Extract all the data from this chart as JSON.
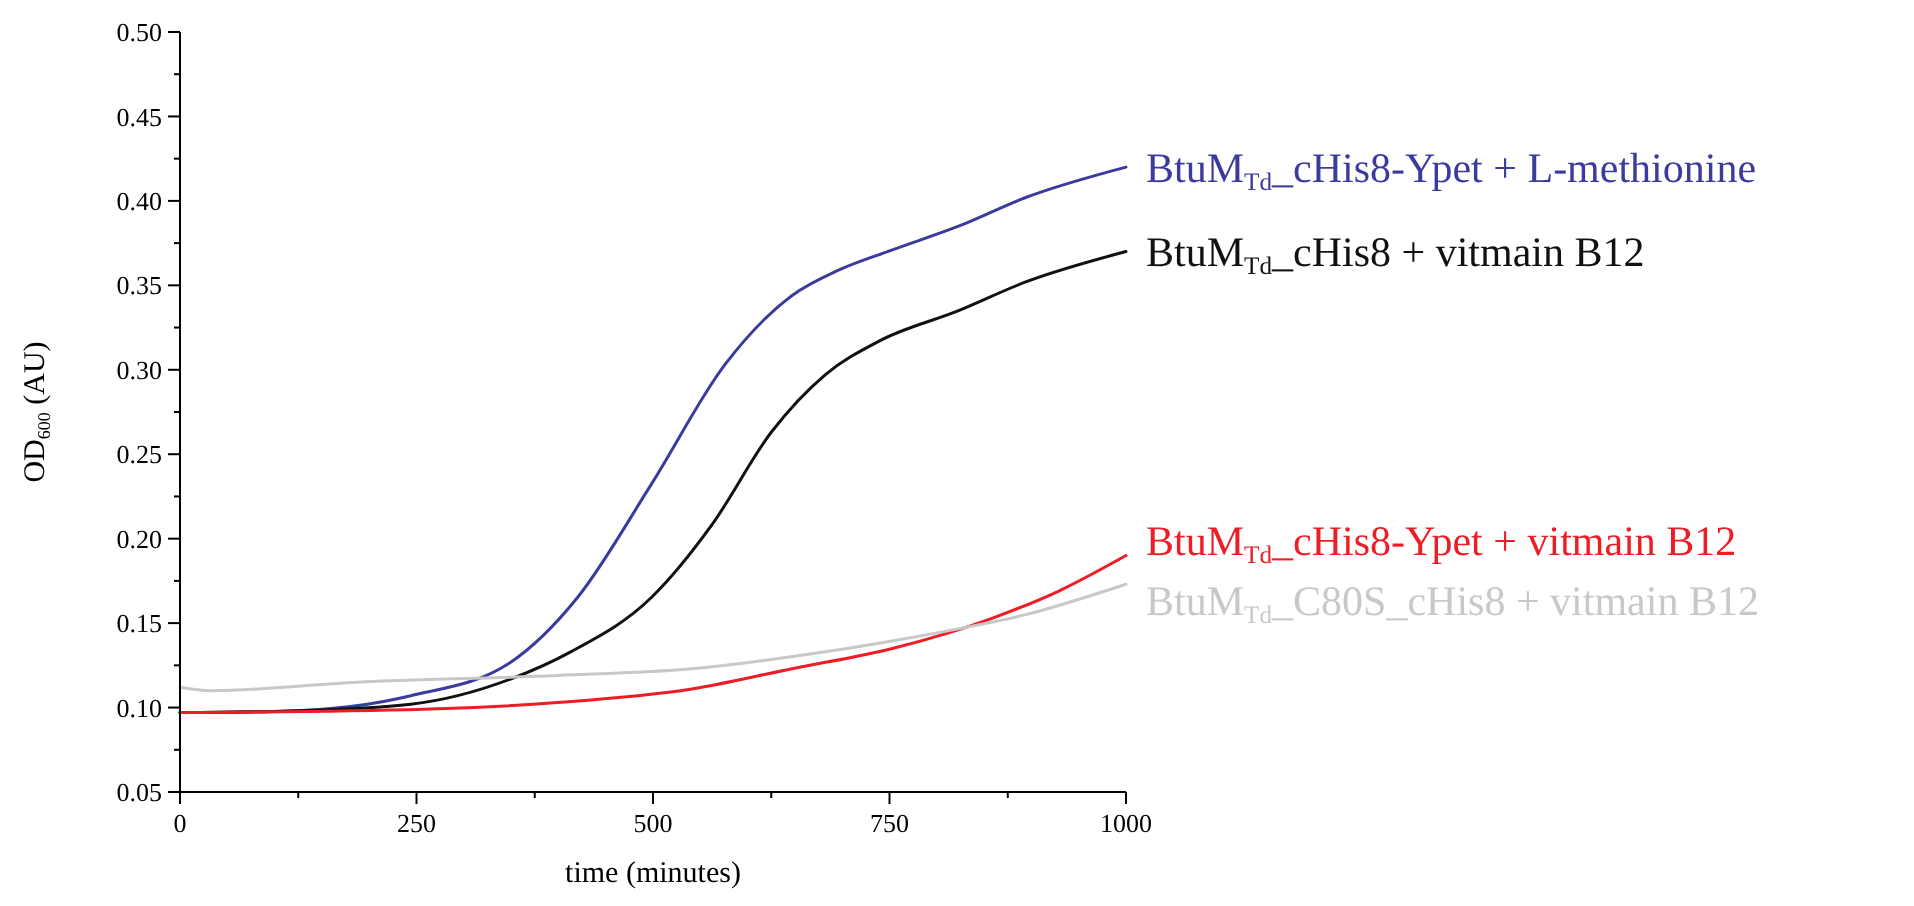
{
  "chart_data": {
    "type": "line",
    "xlabel": "time (minutes)",
    "ylabel": "OD$_{600}$ (AU)",
    "xlim": [
      0,
      1000
    ],
    "ylim": [
      0.05,
      0.5
    ],
    "xticks": [
      0,
      {
        "value": 125,
        "label": null
      },
      250,
      {
        "value": 375,
        "label": null
      },
      500,
      {
        "value": 625,
        "label": null
      },
      750,
      {
        "value": 875,
        "label": null
      },
      1000
    ],
    "yticks": [
      0.05,
      {
        "value": 0.075,
        "label": null
      },
      "0.10",
      {
        "value": 0.125,
        "label": null
      },
      0.15,
      {
        "value": 0.175,
        "label": null
      },
      "0.20",
      {
        "value": 0.225,
        "label": null
      },
      0.25,
      {
        "value": 0.275,
        "label": null
      },
      "0.30",
      {
        "value": 0.325,
        "label": null
      },
      0.35,
      {
        "value": 0.375,
        "label": null
      },
      "0.40",
      {
        "value": 0.425,
        "label": null
      },
      0.45,
      {
        "value": 0.475,
        "label": null
      },
      "0.50"
    ],
    "grid": false,
    "marker": "none",
    "line_style": "solid",
    "series": [
      {
        "name": "BtuM$_{Td}$_cHis8-Ypet + L-methionine",
        "color": "#3b3b9e",
        "x": [
          0,
          117,
          244,
          350,
          420,
          498,
          576,
          647,
          696,
          753,
          823,
          894,
          1000
        ],
        "values": [
          0.097,
          0.098,
          0.107,
          0.127,
          0.165,
          0.232,
          0.303,
          0.344,
          0.359,
          0.371,
          0.385,
          0.402,
          0.42
        ]
      },
      {
        "name": "BtuM$_{Td}$_cHis8 + vitmain B12",
        "color": "#111111",
        "x": [
          0,
          117,
          244,
          350,
          413,
          498,
          562,
          625,
          682,
          739,
          823,
          894,
          1000
        ],
        "values": [
          0.097,
          0.098,
          0.102,
          0.117,
          0.133,
          0.165,
          0.208,
          0.263,
          0.297,
          0.317,
          0.335,
          0.352,
          0.37
        ]
      },
      {
        "name": "BtuM$_{Td}$_cHis8-Ypet + vitmain B12",
        "color": "#ee1c25",
        "x": [
          0,
          258,
          399,
          541,
          647,
          753,
          859,
          929,
          1000
        ],
        "values": [
          0.097,
          0.099,
          0.103,
          0.111,
          0.123,
          0.135,
          0.153,
          0.169,
          0.19
        ]
      },
      {
        "name": "BtuM$_{Td}$_C80S_cHis8 + vitmain B12",
        "color": "#c8c8c8",
        "x": [
          0,
          32,
          187,
          399,
          541,
          682,
          788,
          894,
          1000
        ],
        "values": [
          0.112,
          0.11,
          0.115,
          0.119,
          0.123,
          0.133,
          0.143,
          0.155,
          0.173
        ]
      }
    ]
  }
}
